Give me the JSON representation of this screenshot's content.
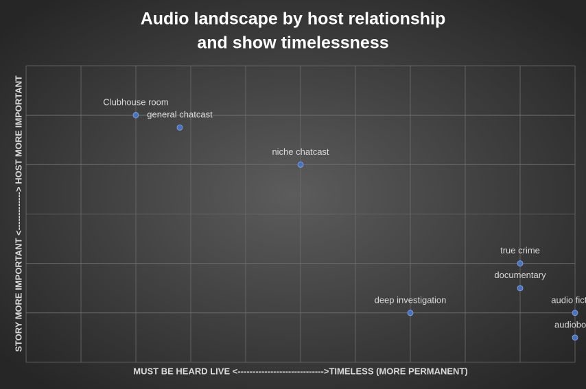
{
  "chart_data": {
    "type": "scatter",
    "title": [
      "Audio landscape by host relationship",
      "and show timelessness"
    ],
    "x_label": "MUST BE HEARD LIVE <----------------------------->TIMELESS (MORE PERMANENT)",
    "y_label": "STORY MORE IMPORTANT <-------------> HOST MORE IMPORTANT",
    "series": [
      {
        "color": "#4472c4",
        "labels": [
          "Clubhouse room",
          "general chatcast",
          "niche chatcast",
          "true crime",
          "documentary",
          "deep investigation",
          "audio fiction",
          "audiobook"
        ],
        "x": [
          1,
          1.8,
          4,
          8,
          8,
          6,
          9,
          9
        ],
        "values": [
          5,
          4.75,
          4,
          2,
          1.5,
          1,
          1,
          0.5
        ]
      }
    ],
    "xlim": [
      -1,
      9
    ],
    "xticks": [
      -1,
      0,
      1,
      2,
      3,
      4,
      5,
      6,
      7,
      8,
      9
    ],
    "ylim": [
      0,
      6
    ],
    "yticks": [
      0,
      1,
      2,
      3,
      4,
      5,
      6
    ],
    "grid": true
  }
}
